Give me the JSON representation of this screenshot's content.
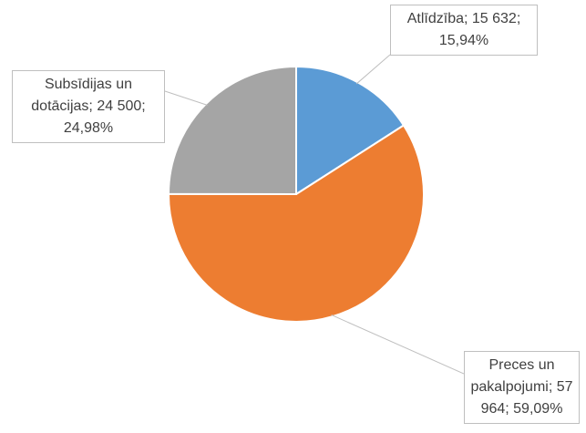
{
  "chart_data": {
    "type": "pie",
    "categories": [
      "Atlīdzība",
      "Preces un pakalpojumi",
      "Subsīdijas un dotācijas"
    ],
    "values": [
      15632,
      57964,
      24500
    ],
    "data_labels": [
      "Atlīdzība; 15 632; 15,94%",
      "Preces un pakalpojumi; 57 964; 59,09%",
      "Subsīdijas un dotācijas; 24 500; 24,98%"
    ],
    "colors": [
      "#5b9bd5",
      "#ed7d31",
      "#a5a5a5"
    ]
  }
}
